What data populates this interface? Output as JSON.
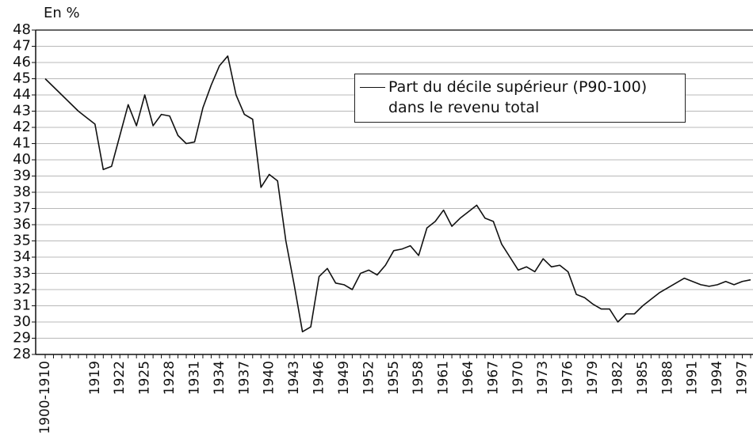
{
  "chart_data": {
    "type": "line",
    "y_label": "En %",
    "categories": [
      "1900-1910",
      null,
      null,
      null,
      null,
      null,
      "1919",
      null,
      null,
      "1922",
      null,
      null,
      "1925",
      null,
      null,
      "1928",
      null,
      null,
      "1931",
      null,
      null,
      "1934",
      null,
      null,
      "1937",
      null,
      null,
      "1940",
      null,
      null,
      "1943",
      null,
      null,
      "1946",
      null,
      null,
      "1949",
      null,
      null,
      "1952",
      null,
      null,
      "1955",
      null,
      null,
      "1958",
      null,
      null,
      "1961",
      null,
      null,
      "1964",
      null,
      null,
      "1967",
      null,
      null,
      "1970",
      null,
      null,
      "1973",
      null,
      null,
      "1976",
      null,
      null,
      "1979",
      null,
      null,
      "1982",
      null,
      null,
      "1985",
      null,
      null,
      "1988",
      null,
      null,
      "1991",
      null,
      null,
      "1994",
      null,
      null,
      "1997",
      null
    ],
    "series": [
      {
        "name": "Part du décile supérieur (P90-100) dans le revenu total",
        "color": "#111111",
        "values": [
          45.0,
          44.5,
          44.0,
          43.5,
          43.0,
          42.6,
          42.2,
          39.4,
          39.6,
          41.5,
          43.4,
          42.1,
          44.0,
          42.1,
          42.8,
          42.7,
          41.5,
          41.0,
          41.1,
          43.2,
          44.6,
          45.8,
          46.4,
          44.0,
          42.8,
          42.5,
          38.3,
          39.1,
          38.7,
          35.0,
          32.3,
          29.4,
          29.7,
          32.8,
          33.3,
          32.4,
          32.3,
          32.0,
          33.0,
          33.2,
          32.9,
          33.5,
          34.4,
          34.5,
          34.7,
          34.1,
          35.8,
          36.2,
          36.9,
          35.9,
          36.4,
          36.8,
          37.2,
          36.4,
          36.2,
          34.8,
          34.0,
          33.2,
          33.4,
          33.1,
          33.9,
          33.4,
          33.5,
          33.1,
          31.7,
          31.5,
          31.1,
          30.8,
          30.8,
          30.0,
          30.5,
          30.5,
          31.0,
          31.4,
          31.8,
          32.1,
          32.4,
          32.7,
          32.5,
          32.3,
          32.2,
          32.3,
          32.5,
          32.3,
          32.5,
          32.6
        ]
      }
    ],
    "ylim": [
      28,
      48
    ],
    "yticks": [
      28,
      29,
      30,
      31,
      32,
      33,
      34,
      35,
      36,
      37,
      38,
      39,
      40,
      41,
      42,
      43,
      44,
      45,
      46,
      47,
      48
    ],
    "grid": true,
    "legend": "top-right"
  }
}
